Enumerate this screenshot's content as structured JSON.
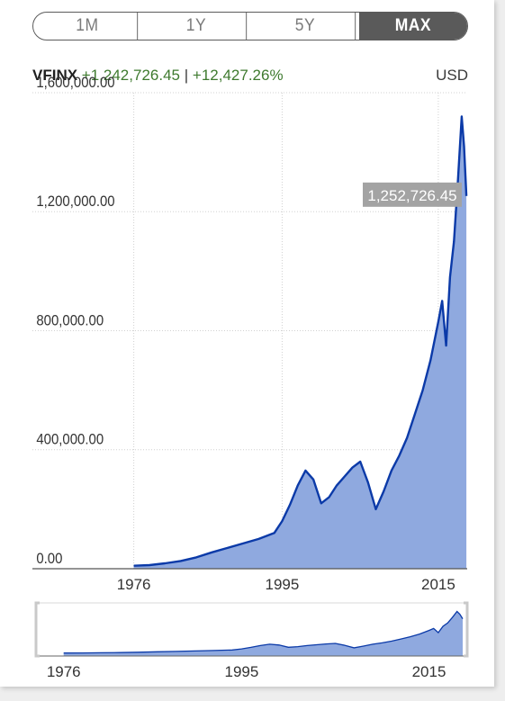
{
  "range_buttons": [
    {
      "label": "1M",
      "active": false
    },
    {
      "label": "1Y",
      "active": false
    },
    {
      "label": "5Y",
      "active": false
    },
    {
      "label": "MAX",
      "active": true
    }
  ],
  "header": {
    "ticker": "VFINX",
    "change": "+1,242,726.45",
    "separator": "|",
    "change_pct": "+12,427.26%",
    "currency": "USD"
  },
  "colors": {
    "line": "#0b3aa8",
    "area": "#8fa9df",
    "gridline": "#d0d0d0",
    "value_badge": "#a3a3a3",
    "change_text": "#3e7a2e",
    "active_button": "#5a5a5a"
  },
  "chart_data": {
    "type": "area",
    "ticker": "VFINX",
    "currency": "USD",
    "y_ticks": [
      {
        "value": 0,
        "label": "0.00"
      },
      {
        "value": 400000,
        "label": "400,000.00"
      },
      {
        "value": 800000,
        "label": "800,000.00"
      },
      {
        "value": 1200000,
        "label": "1,200,000.00"
      },
      {
        "value": 1600000,
        "label": "1,600,000.00"
      }
    ],
    "x_ticks": [
      1976,
      1995,
      2015
    ],
    "ylim": [
      0,
      1600000
    ],
    "xlim": [
      1974.2,
      2018.7
    ],
    "last_value_label": "1,252,726.45",
    "last_value": 1252726.45,
    "grid": true,
    "series": [
      {
        "x": [
          1976,
          1978,
          1980,
          1982,
          1984,
          1986,
          1988,
          1990,
          1992,
          1994,
          1995,
          1996,
          1997,
          1998,
          1999,
          2000,
          2001,
          2002,
          2003,
          2004,
          2005,
          2006,
          2007,
          2008,
          2009,
          2010,
          2011,
          2012,
          2013,
          2014,
          2015,
          2015.5,
          2016,
          2016.5,
          2017,
          2017.5,
          2018,
          2018.3,
          2018.6
        ],
        "y": [
          10000,
          12000,
          18000,
          26000,
          38000,
          55000,
          70000,
          85000,
          100000,
          120000,
          160000,
          215000,
          280000,
          330000,
          300000,
          220000,
          240000,
          280000,
          310000,
          340000,
          360000,
          290000,
          200000,
          260000,
          330000,
          380000,
          440000,
          520000,
          600000,
          700000,
          830000,
          900000,
          750000,
          980000,
          1100000,
          1300000,
          1520000,
          1420000,
          1252726.45
        ]
      }
    ],
    "navigator": {
      "x_ticks": [
        1976,
        1995,
        2015
      ]
    }
  }
}
